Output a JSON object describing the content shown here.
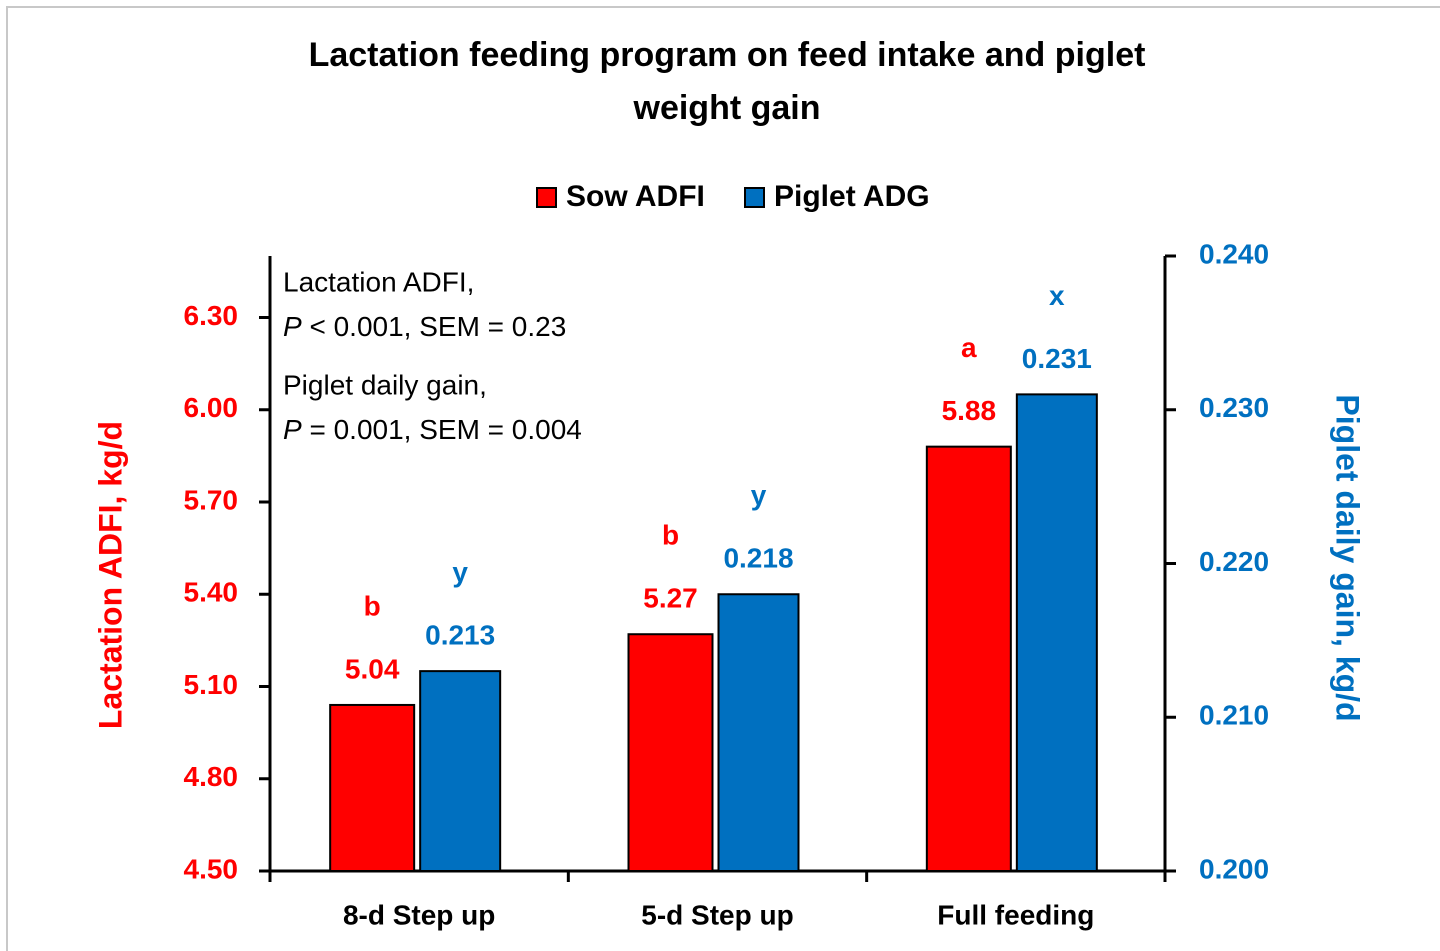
{
  "chart_data": {
    "type": "bar",
    "title": [
      "Lactation feeding program on feed intake and piglet",
      "weight gain"
    ],
    "categories": [
      "8-d Step up",
      "5-d Step up",
      "Full feeding"
    ],
    "series": [
      {
        "name": "Sow ADFI",
        "color": "#ff0000",
        "values": [
          5.04,
          5.27,
          5.88
        ],
        "letters": [
          "b",
          "b",
          "a"
        ]
      },
      {
        "name": "Piglet ADG",
        "color": "#0070c0",
        "axis": "y2",
        "values": [
          0.213,
          0.218,
          0.231
        ],
        "letters": [
          "y",
          "y",
          "x"
        ]
      }
    ],
    "ylabel": "Lactation ADFI, kg/d",
    "y2label": "Piglet daily gain, kg/d",
    "ylim": [
      4.5,
      6.5
    ],
    "yticks": [
      {
        "value": 4.5,
        "label": "4.50"
      },
      {
        "value": 4.8,
        "label": "4.80"
      },
      {
        "value": 5.1,
        "label": "5.10"
      },
      {
        "value": 5.4,
        "label": "5.40"
      },
      {
        "value": 5.7,
        "label": "5.70"
      },
      {
        "value": 6.0,
        "label": "6.00"
      },
      {
        "value": 6.3,
        "label": "6.30"
      }
    ],
    "y2lim": [
      0.2,
      0.24
    ],
    "y2ticks": [
      {
        "value": 0.2,
        "label": "0.200"
      },
      {
        "value": 0.21,
        "label": "0.210"
      },
      {
        "value": 0.22,
        "label": "0.220"
      },
      {
        "value": 0.23,
        "label": "0.230"
      },
      {
        "value": 0.24,
        "label": "0.240"
      }
    ],
    "annotations": [
      {
        "heading": "Lactation ADFI,",
        "p": "P",
        "rest": " < 0.001, SEM = 0.23"
      },
      {
        "heading": "Piglet daily gain,",
        "p": "P",
        "rest": " = 0.001, SEM = 0.004"
      }
    ],
    "legend": "top",
    "grid": false
  }
}
